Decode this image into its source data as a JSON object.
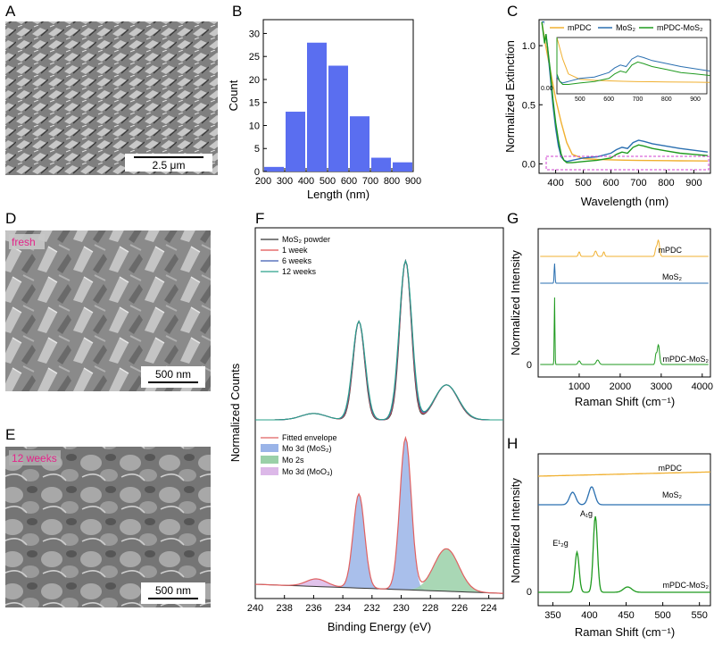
{
  "colors": {
    "bar": "#5a6ef0",
    "mpdc": "#f0b030",
    "mos2": "#2a6fb0",
    "mpdcmos2": "#1f9a1f",
    "sem_bg": "#8f8f8f",
    "fit": "#e06060",
    "mo3d": "#9ab4e8",
    "mo2s": "#9ad0a8",
    "moo3": "#dcb8e8",
    "inset_box": "#d040d0",
    "tag": "#e4248a"
  },
  "panel_letters": [
    "A",
    "B",
    "C",
    "D",
    "E",
    "F",
    "G",
    "H"
  ],
  "sem": {
    "a_scale": "2.5 μm",
    "d_tag": "fresh",
    "d_scale": "500 nm",
    "e_tag": "12 weeks",
    "e_scale": "500 nm"
  },
  "chart_data": [
    {
      "id": "B",
      "type": "bar",
      "xlabel": "Length (nm)",
      "ylabel": "Count",
      "xlim": [
        200,
        900
      ],
      "ylim": [
        0,
        33
      ],
      "xticks": [
        200,
        300,
        400,
        500,
        600,
        700,
        800,
        900
      ],
      "yticks": [
        0,
        5,
        10,
        15,
        20,
        25,
        30
      ],
      "bins": [
        [
          200,
          300
        ],
        [
          300,
          400
        ],
        [
          400,
          500
        ],
        [
          500,
          600
        ],
        [
          600,
          700
        ],
        [
          700,
          800
        ],
        [
          800,
          900
        ]
      ],
      "values": [
        1,
        13,
        28,
        23,
        12,
        3,
        2
      ]
    },
    {
      "id": "C",
      "type": "line",
      "xlabel": "Wavelength (nm)",
      "ylabel": "Normalized Extinction",
      "xlim": [
        340,
        960
      ],
      "ylim": [
        -0.08,
        1.22
      ],
      "xticks": [
        400,
        500,
        600,
        700,
        800,
        900
      ],
      "yticks": [
        0.0,
        0.5,
        1.0
      ],
      "ytick_labels": [
        "0.0",
        "0.5",
        "1.0"
      ],
      "legend": [
        "mPDC",
        "MoS₂",
        "mPDC-MoS₂"
      ],
      "legend_position": "top",
      "inset": {
        "xticks": [
          500,
          600,
          700,
          800,
          900
        ],
        "ytick_label": "0.00",
        "xlim": [
          420,
          940
        ]
      },
      "series": [
        {
          "name": "mPDC",
          "x": [
            350,
            360,
            380,
            400,
            420,
            440,
            460,
            500,
            550,
            600,
            650,
            700,
            750,
            800,
            850,
            900,
            950
          ],
          "y": [
            1.2,
            1.05,
            0.8,
            0.55,
            0.35,
            0.18,
            0.08,
            0.045,
            0.038,
            0.034,
            0.031,
            0.029,
            0.028,
            0.027,
            0.026,
            0.025,
            0.024
          ]
        },
        {
          "name": "MoS₂",
          "x": [
            350,
            360,
            370,
            380,
            390,
            400,
            410,
            420,
            430,
            440,
            460,
            500,
            550,
            600,
            620,
            640,
            660,
            680,
            700,
            720,
            750,
            800,
            850,
            900,
            950
          ],
          "y": [
            1.2,
            1.2,
            1.0,
            0.75,
            0.5,
            0.3,
            0.15,
            0.06,
            0.03,
            0.02,
            0.03,
            0.05,
            0.06,
            0.09,
            0.12,
            0.14,
            0.13,
            0.18,
            0.2,
            0.19,
            0.17,
            0.15,
            0.13,
            0.115,
            0.1
          ]
        },
        {
          "name": "mPDC-MoS₂",
          "x": [
            350,
            360,
            365,
            370,
            380,
            390,
            400,
            410,
            420,
            430,
            440,
            460,
            500,
            550,
            600,
            620,
            640,
            660,
            680,
            700,
            720,
            750,
            800,
            850,
            900,
            950
          ],
          "y": [
            1.2,
            1.02,
            1.1,
            1.0,
            0.8,
            0.55,
            0.35,
            0.2,
            0.08,
            0.03,
            0.01,
            0.01,
            0.02,
            0.03,
            0.05,
            0.08,
            0.1,
            0.09,
            0.14,
            0.16,
            0.15,
            0.13,
            0.11,
            0.09,
            0.08,
            0.07
          ]
        }
      ]
    },
    {
      "id": "F",
      "type": "line",
      "xlabel": "Binding Energy (eV)",
      "ylabel": "Normalized Counts",
      "xlim": [
        240,
        223
      ],
      "xticks": [
        240,
        238,
        236,
        234,
        232,
        230,
        228,
        226,
        224
      ],
      "legend_top": [
        "MoS₂ powder",
        "1 week",
        "6 weeks",
        "12 weeks"
      ],
      "legend_bottom": [
        "Fitted envelope",
        "Mo 3d (MoS₂)",
        "Mo 2s",
        "Mo 3d (MoO₃)"
      ],
      "peaks_eV": [
        232.9,
        229.7,
        226.9
      ],
      "peak_rel_heights": [
        0.62,
        1.0,
        0.22
      ]
    },
    {
      "id": "G",
      "type": "line",
      "xlabel": "Raman Shift (cm⁻¹)",
      "ylabel": "Normalized Intensity",
      "xlim": [
        0,
        4200
      ],
      "xticks": [
        1000,
        2000,
        3000,
        4000
      ],
      "ytick_labels": [
        "0"
      ],
      "series_labels": [
        "mPDC",
        "MoS₂",
        "mPDC-MoS₂"
      ]
    },
    {
      "id": "H",
      "type": "line",
      "xlabel": "Raman Shift (cm⁻¹)",
      "ylabel": "Normalized Intensity",
      "xlim": [
        330,
        565
      ],
      "xticks": [
        350,
        400,
        450,
        500,
        550
      ],
      "ytick_labels": [
        "0"
      ],
      "series_labels": [
        "mPDC",
        "MoS₂",
        "mPDC-MoS₂"
      ],
      "peak_labels": [
        "E¹₂g",
        "A₁g"
      ],
      "peaks_cm": [
        383,
        408
      ]
    }
  ]
}
